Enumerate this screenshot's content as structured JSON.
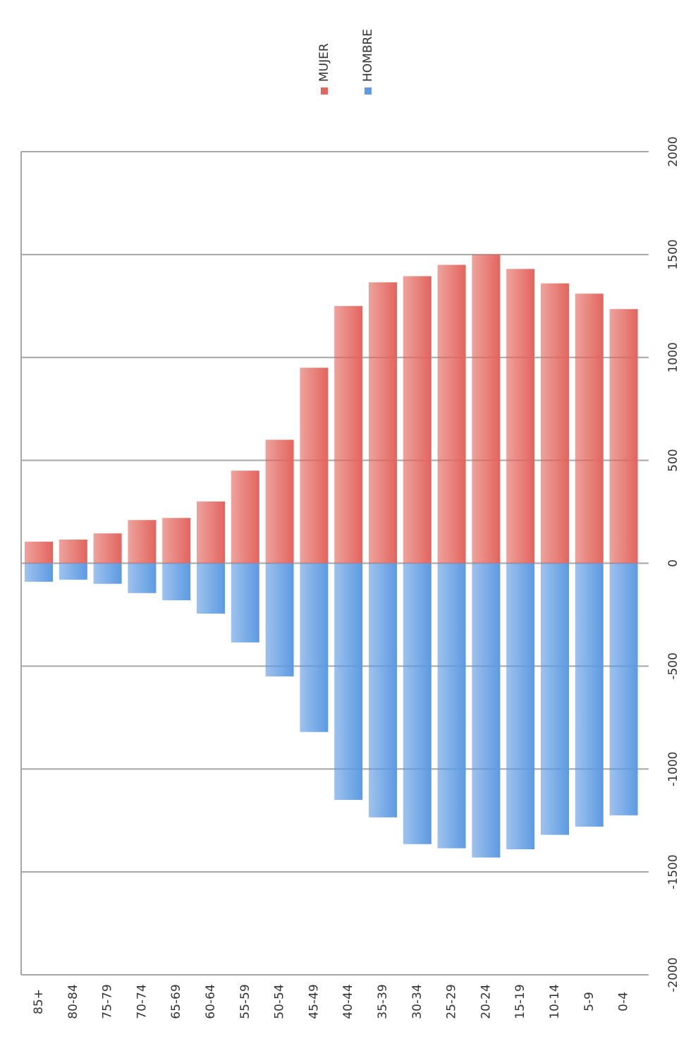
{
  "chart_data": {
    "type": "bar",
    "categories": [
      "85+",
      "80-84",
      "75-79",
      "70-74",
      "65-69",
      "60-64",
      "55-59",
      "50-54",
      "45-49",
      "40-44",
      "35-39",
      "30-34",
      "25-29",
      "20-24",
      "15-19",
      "10-14",
      "5-9",
      "0-4"
    ],
    "series": [
      {
        "name": "MUJER",
        "color": "#e2655d",
        "values": [
          105,
          115,
          145,
          210,
          220,
          300,
          450,
          600,
          950,
          1250,
          1365,
          1395,
          1450,
          1500,
          1430,
          1360,
          1310,
          1235
        ]
      },
      {
        "name": "HOMBRE",
        "color": "#5d9ae2",
        "values": [
          -90,
          -80,
          -100,
          -145,
          -180,
          -245,
          -385,
          -550,
          -820,
          -1150,
          -1235,
          -1365,
          -1385,
          -1430,
          -1390,
          -1320,
          -1280,
          -1225
        ]
      }
    ],
    "ylim": [
      -2000,
      2000
    ],
    "yticks": [
      -2000,
      -1500,
      -1000,
      -500,
      0,
      500,
      1000,
      1500,
      2000
    ],
    "grid": true
  }
}
